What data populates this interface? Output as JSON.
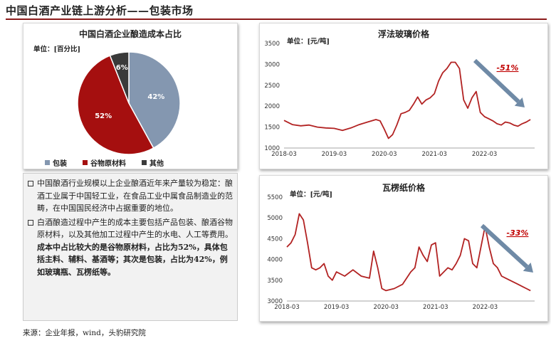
{
  "page": {
    "title": "中国白酒产业链上游分析——包装市场",
    "source": "来源：企业年报，wind，头豹研究院"
  },
  "colors": {
    "accent": "#8b1a1a",
    "line": "#b22222",
    "arrow": "#6f8aa6",
    "annotation": "#c00000"
  },
  "text_box": {
    "para1": "中国酿酒行业规模以上企业酿酒近年来产量较为稳定：酿酒工业属于中国轻工业，在食品工业中属食品制造业的范畴，在中国国民经济中占据重要的地位。",
    "para2_plain": "白酒酿造过程中产生的成本主要包括产品包装、酿酒谷物原材料，以及其他加工过程中产生的水电、人工等费用。",
    "para2_bold": "成本中占比较大的是谷物原材料，占比为52%，具体包括主料、辅料、基酒等；其次是包装，占比为42%，例如玻璃瓶、瓦楞纸等。"
  },
  "chart_data": [
    {
      "type": "pie",
      "title": "中国白酒企业酿造成本占比",
      "unit": "单位：[百分比]",
      "slices": [
        {
          "name": "包装",
          "value": 42,
          "label": "42%",
          "color": "#8497b0"
        },
        {
          "name": "谷物原材料",
          "value": 52,
          "label": "52%",
          "color": "#a50f0f"
        },
        {
          "name": "其他",
          "value": 6,
          "label": "6%",
          "color": "#3a3a3a"
        }
      ]
    },
    {
      "type": "line",
      "title": "浮法玻璃价格",
      "unit": "单位：[元/吨]",
      "ylim": [
        1000,
        3500
      ],
      "yticks": [
        1000,
        1500,
        2000,
        2500,
        3000,
        3500
      ],
      "xlim": [
        "2018-03",
        "2023-03"
      ],
      "xticks": [
        "2018-03",
        "2019-03",
        "2020-03",
        "2021-03",
        "2022-03"
      ],
      "annotation": "-51%",
      "series": [
        {
          "x": [
            "2018-03",
            "2018-05",
            "2018-07",
            "2018-09",
            "2018-11",
            "2019-01",
            "2019-03",
            "2019-05",
            "2019-07",
            "2019-09",
            "2019-11",
            "2020-01",
            "2020-02",
            "2020-03",
            "2020-04",
            "2020-05",
            "2020-06",
            "2020-07",
            "2020-08",
            "2020-09",
            "2020-10",
            "2020-11",
            "2020-12",
            "2021-01",
            "2021-02",
            "2021-03",
            "2021-04",
            "2021-05",
            "2021-06",
            "2021-07",
            "2021-08",
            "2021-09",
            "2021-10",
            "2021-11",
            "2021-12",
            "2022-01",
            "2022-02",
            "2022-03",
            "2022-04",
            "2022-05",
            "2022-06",
            "2022-07",
            "2022-08",
            "2022-09",
            "2022-10",
            "2022-11",
            "2022-12",
            "2023-01",
            "2023-02"
          ],
          "y": [
            1660,
            1560,
            1530,
            1550,
            1500,
            1480,
            1470,
            1420,
            1480,
            1560,
            1620,
            1680,
            1650,
            1450,
            1230,
            1320,
            1550,
            1820,
            1850,
            1900,
            2050,
            2220,
            2050,
            2150,
            2200,
            2300,
            2600,
            2800,
            2900,
            3050,
            3050,
            2900,
            2150,
            1950,
            2200,
            2350,
            1850,
            1750,
            1700,
            1650,
            1580,
            1550,
            1620,
            1600,
            1550,
            1520,
            1580,
            1620,
            1680
          ]
        }
      ]
    },
    {
      "type": "line",
      "title": "瓦楞纸价格",
      "unit": "单位：[元/吨]",
      "ylim": [
        3000,
        5500
      ],
      "yticks": [
        3000,
        3500,
        4000,
        4500,
        5000,
        5500
      ],
      "xlim": [
        "2018-03",
        "2023-03"
      ],
      "xticks": [
        "2018-03",
        "2019-03",
        "2020-03",
        "2021-03",
        "2022-03"
      ],
      "annotation": "-33%",
      "series": [
        {
          "x": [
            "2018-03",
            "2018-04",
            "2018-05",
            "2018-06",
            "2018-07",
            "2018-08",
            "2018-09",
            "2018-10",
            "2018-11",
            "2018-12",
            "2019-01",
            "2019-02",
            "2019-03",
            "2019-05",
            "2019-07",
            "2019-09",
            "2019-11",
            "2019-12",
            "2020-01",
            "2020-02",
            "2020-03",
            "2020-05",
            "2020-07",
            "2020-09",
            "2020-10",
            "2020-11",
            "2020-12",
            "2021-01",
            "2021-02",
            "2021-03",
            "2021-04",
            "2021-05",
            "2021-06",
            "2021-07",
            "2021-08",
            "2021-09",
            "2021-10",
            "2021-11",
            "2021-12",
            "2022-01",
            "2022-02",
            "2022-03",
            "2022-04",
            "2022-05",
            "2022-06",
            "2022-07",
            "2022-08",
            "2022-09",
            "2022-10",
            "2022-11",
            "2022-12",
            "2023-01",
            "2023-02"
          ],
          "y": [
            4300,
            4400,
            4600,
            5100,
            4950,
            4400,
            3800,
            3750,
            3800,
            3900,
            3600,
            3500,
            3700,
            3600,
            3750,
            3600,
            3550,
            4200,
            3800,
            3300,
            3250,
            3300,
            3400,
            3700,
            3800,
            4300,
            4100,
            3950,
            4350,
            4400,
            3600,
            3700,
            3800,
            3750,
            3900,
            4100,
            4500,
            4450,
            3900,
            3800,
            4300,
            4800,
            4300,
            3900,
            3800,
            3600,
            3550,
            3500,
            3450,
            3400,
            3350,
            3300,
            3250
          ]
        }
      ]
    }
  ]
}
